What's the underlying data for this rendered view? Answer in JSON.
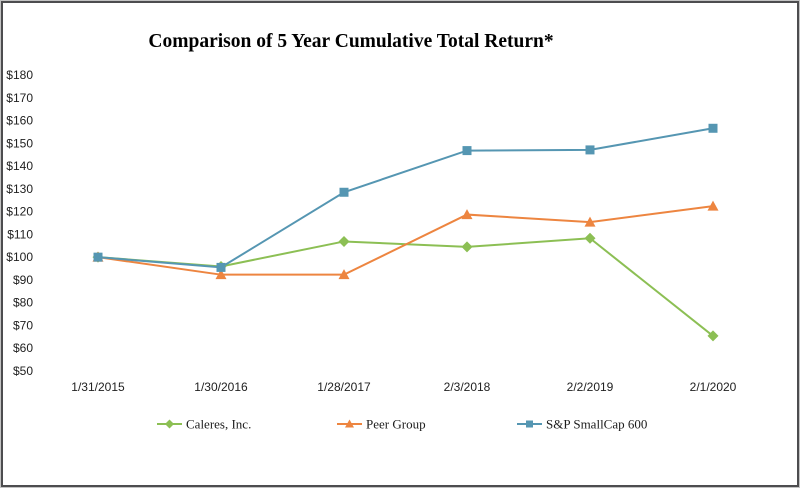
{
  "title": "Comparison of 5 Year Cumulative Total Return*",
  "chart_data": {
    "type": "line",
    "title": "Comparison of 5 Year Cumulative Total Return*",
    "x_labels": [
      "1/31/2015",
      "1/30/2016",
      "1/28/2017",
      "2/3/2018",
      "2/2/2019",
      "2/1/2020"
    ],
    "y_axis": {
      "min": 50,
      "max": 180,
      "step": 10,
      "tick_prefix": "$"
    },
    "ylim": [
      50,
      180
    ],
    "grid": false,
    "legend_position": "bottom",
    "series": [
      {
        "name": "Caleres, Inc.",
        "color": "#8CBF54",
        "marker": "diamond",
        "values": [
          100,
          95.9,
          106.9,
          104.5,
          108.3,
          65.4
        ]
      },
      {
        "name": "Peer Group",
        "color": "#ED8540",
        "marker": "triangle",
        "values": [
          100,
          92.3,
          92.3,
          118.7,
          115.4,
          122.4
        ]
      },
      {
        "name": "S&P SmallCap 600",
        "color": "#5596B2",
        "marker": "square",
        "values": [
          100,
          95.5,
          128.5,
          146.8,
          147.1,
          156.6
        ]
      }
    ]
  }
}
